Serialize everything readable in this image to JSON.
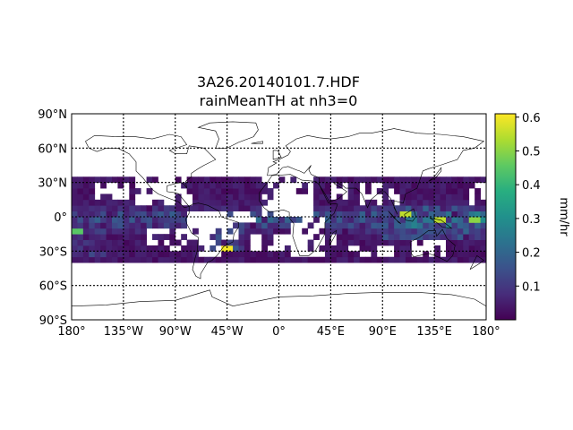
{
  "chart_data": {
    "type": "heatmap",
    "title_line1": "3A26.20140101.7.HDF",
    "title_line2": "rainMeanTH at nh3=0",
    "projection": "equirectangular (cylindrical)",
    "xlim": [
      -180,
      180
    ],
    "ylim": [
      -90,
      90
    ],
    "x_ticks": [
      "180°",
      "135°W",
      "90°W",
      "45°W",
      "0°",
      "45°E",
      "90°E",
      "135°E",
      "180°"
    ],
    "x_tick_values": [
      -180,
      -135,
      -90,
      -45,
      0,
      45,
      90,
      135,
      180
    ],
    "y_ticks": [
      "90°N",
      "60°N",
      "30°N",
      "0°",
      "30°S",
      "60°S",
      "90°S"
    ],
    "y_tick_values": [
      90,
      60,
      30,
      0,
      -30,
      -60,
      -90
    ],
    "grid": true,
    "grid_style": "dotted black",
    "coastlines": true,
    "data_lat_range": [
      -40,
      35
    ],
    "data_lon_range": [
      -180,
      180
    ],
    "cell_size_deg": 5,
    "colormap": "viridis",
    "colorbar": {
      "label": "mm/hr",
      "min": 0.0,
      "max": 0.61,
      "ticks": [
        "0.1",
        "0.2",
        "0.3",
        "0.4",
        "0.5",
        "0.6"
      ],
      "tick_values": [
        0.1,
        0.2,
        0.3,
        0.4,
        0.5,
        0.6
      ],
      "placement": "right"
    },
    "notable_values": [
      {
        "lon": 110,
        "lat": 2.5,
        "value": 0.55
      },
      {
        "lon": 140,
        "lat": -2.5,
        "value": 0.55
      },
      {
        "lon": 170,
        "lat": -2.5,
        "value": 0.5
      },
      {
        "lon": -45,
        "lat": -27.5,
        "value": 0.6
      },
      {
        "lon": -175,
        "lat": -12.5,
        "value": 0.45
      }
    ]
  }
}
